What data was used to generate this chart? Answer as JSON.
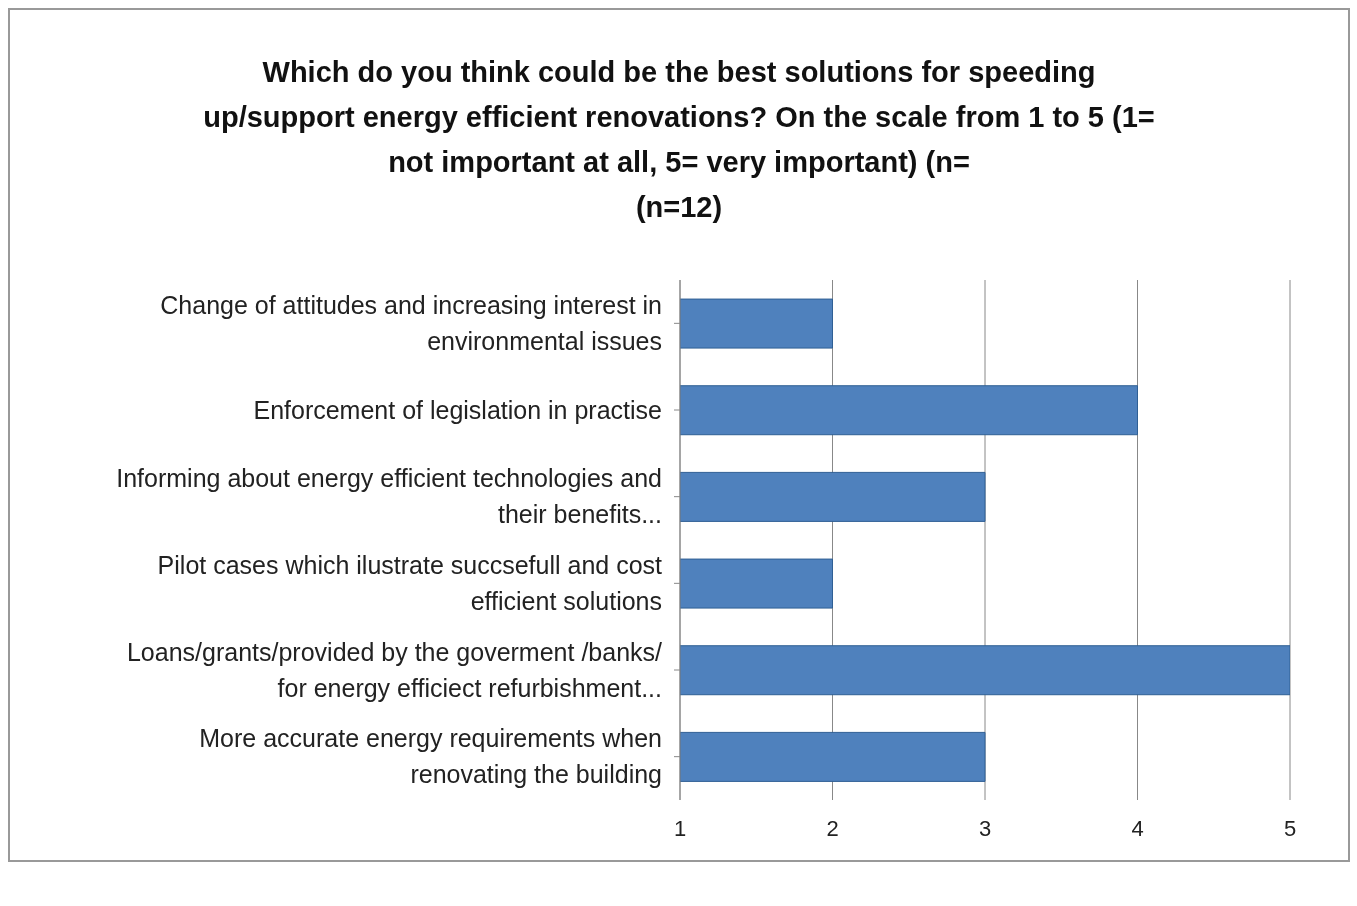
{
  "chart_data": {
    "type": "bar",
    "orientation": "horizontal",
    "title": "Which do you think could be the best solutions for speeding\nup/support  energy efficient renovations? On the scale from 1 to 5 (1=\nnot important at all, 5= very important) (n=\n(n=12)",
    "categories": [
      "Change of attitudes and increasing interest in\nenvironmental issues",
      "Enforcement of legislation in practise",
      "Informing about energy efficient technologies and\ntheir benefits...",
      "Pilot cases which ilustrate succsefull and cost\nefficient solutions",
      "Loans/grants/provided by the goverment /banks/\nfor energy efficiect refurbishment...",
      "More accurate energy requirements when\nrenovating the building"
    ],
    "values": [
      2,
      4,
      3,
      2,
      5,
      3
    ],
    "color": "#4f81bd",
    "xlim": [
      1,
      5
    ],
    "xticks": [
      1,
      2,
      3,
      4,
      5
    ],
    "grid": "x"
  }
}
